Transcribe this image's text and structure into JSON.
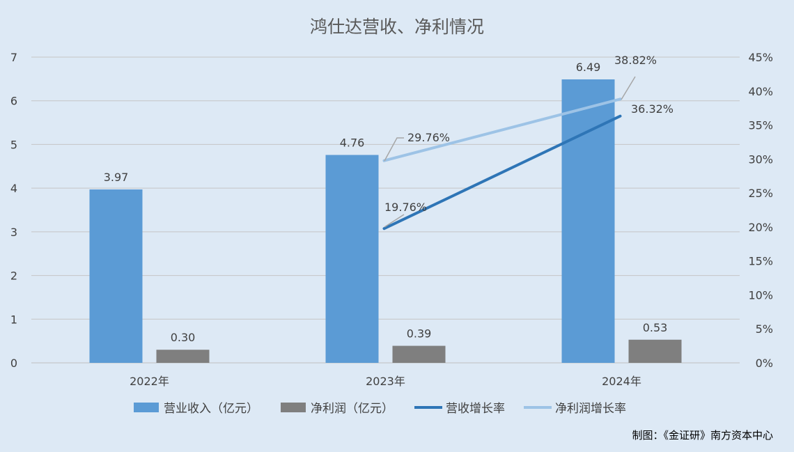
{
  "chart_data": {
    "type": "bar",
    "title": "鸿仕达营收、净利情况",
    "categories": [
      "2022年",
      "2023年",
      "2024年"
    ],
    "series": [
      {
        "name": "营业收入（亿元）",
        "kind": "bar",
        "axis": "left",
        "color": "#5b9bd5",
        "values": [
          3.97,
          4.76,
          6.49
        ],
        "labels": [
          "3.97",
          "4.76",
          "6.49"
        ]
      },
      {
        "name": "净利润（亿元）",
        "kind": "bar",
        "axis": "left",
        "color": "#7f7f7f",
        "values": [
          0.3,
          0.39,
          0.53
        ],
        "labels": [
          "0.30",
          "0.39",
          "0.53"
        ]
      },
      {
        "name": "营收增长率",
        "kind": "line",
        "axis": "right",
        "color": "#2e75b6",
        "values": [
          null,
          19.76,
          36.32
        ],
        "labels": [
          null,
          "19.76%",
          "36.32%"
        ]
      },
      {
        "name": "净利润增长率",
        "kind": "line",
        "axis": "right",
        "color": "#9dc3e6",
        "values": [
          null,
          29.76,
          38.82
        ],
        "labels": [
          null,
          "29.76%",
          "38.82%"
        ]
      }
    ],
    "y_left": {
      "min": 0,
      "max": 7,
      "ticks": [
        "0",
        "1",
        "2",
        "3",
        "4",
        "5",
        "6",
        "7"
      ]
    },
    "y_right": {
      "min": 0,
      "max": 45,
      "ticks": [
        "0%",
        "5%",
        "10%",
        "15%",
        "20%",
        "25%",
        "30%",
        "35%",
        "40%",
        "45%"
      ]
    },
    "grid": true,
    "legend_position": "bottom"
  },
  "footer": {
    "source": "制图：《金证研》南方资本中心"
  }
}
